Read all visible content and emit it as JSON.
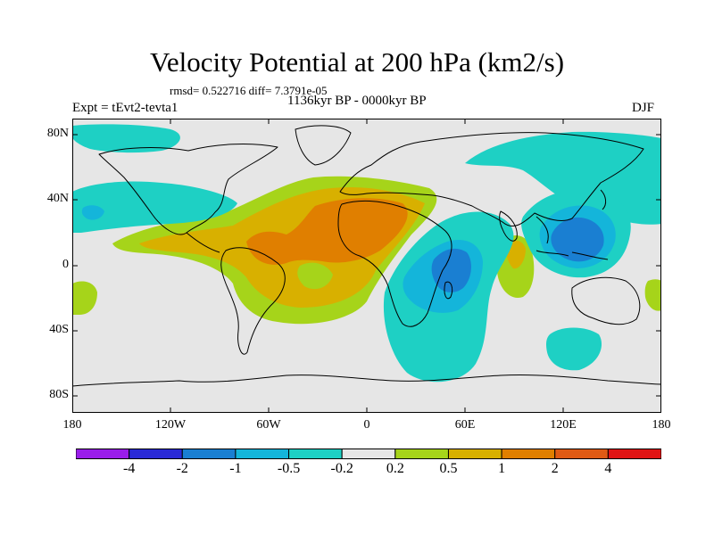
{
  "title": "Velocity Potential at 200 hPa (km2/s)",
  "stats": "rmsd= 0.522716 diff= 7.3791e-05",
  "experiment": "Expt = tEvt2-tevta1",
  "period": "1136kyr BP - 0000kyr BP",
  "season": "DJF",
  "lat_labels": [
    "80N",
    "40N",
    "0",
    "40S",
    "80S"
  ],
  "lon_labels": [
    "180",
    "120W",
    "60W",
    "0",
    "60E",
    "120E",
    "180"
  ],
  "colorbar": {
    "colors": [
      "#9a1dea",
      "#2a2ad6",
      "#1a7fd2",
      "#14b5da",
      "#1ed0c4",
      "#e6e6e6",
      "#a6d41a",
      "#d8b000",
      "#e07f00",
      "#e05a14",
      "#e01414"
    ],
    "labels": [
      "-4",
      "-2",
      "-1",
      "-0.5",
      "-0.2",
      "0.2",
      "0.5",
      "1",
      "2",
      "4"
    ]
  },
  "colors": {
    "background": "#e6e6e6",
    "neg_weak": "#1ed0c4",
    "neg_mid": "#14b5da",
    "neg_strong": "#1a7fd2",
    "pos_weak": "#a6d41a",
    "pos_mid": "#d8b000",
    "pos_strong": "#e07f00"
  }
}
